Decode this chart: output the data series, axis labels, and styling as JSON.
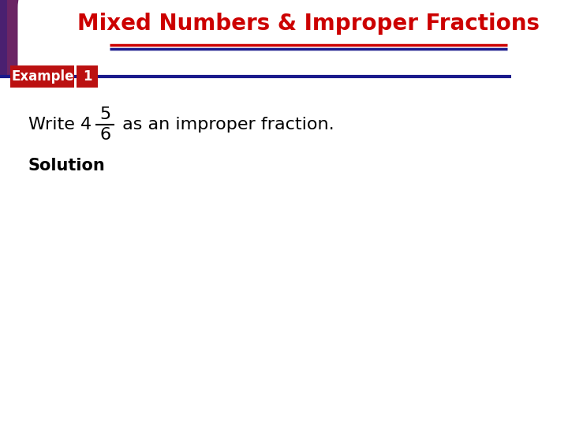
{
  "title": "Mixed Numbers & Improper Fractions",
  "title_color": "#CC0000",
  "title_fontsize": 20,
  "bg_color": "#FFFFFF",
  "separator_line1_color": "#CC0000",
  "separator_line2_color": "#1A1A8C",
  "example_box_color": "#BB1111",
  "example_text": "Example",
  "example_num": "1",
  "example_fontsize": 12,
  "fraction_num": "5",
  "fraction_den": "6",
  "write_prefix": "Write 4",
  "after_fraction": " as an improper fraction.",
  "solution_text": "Solution",
  "solution_fontsize": 15,
  "body_fontsize": 16,
  "grad_colors": [
    "#4A2070",
    "#6B2565",
    "#8B2050",
    "#AA1830",
    "#CC1010"
  ],
  "white_cutout_color": "#FFFFFF"
}
